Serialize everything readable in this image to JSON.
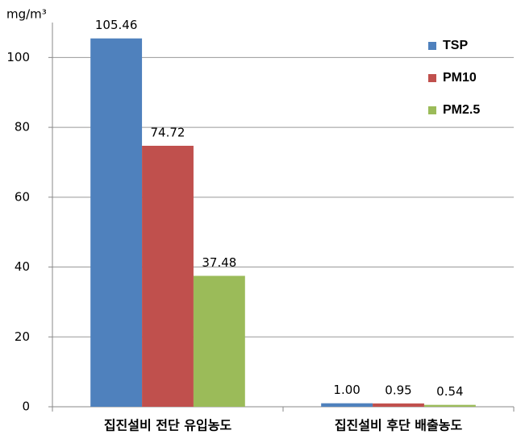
{
  "chart_data": {
    "type": "bar",
    "y_label": "mg/m³",
    "categories": [
      "집진설비 전단 유입농도",
      "집진설비 후단 배출농도"
    ],
    "series": [
      {
        "name": "TSP",
        "color": "#4f81bd",
        "values": [
          105.46,
          1.0
        ],
        "value_labels": [
          "105.46",
          "1.00"
        ]
      },
      {
        "name": "PM10",
        "color": "#c0504d",
        "values": [
          74.72,
          0.95
        ]
      },
      {
        "name": "PM2.5",
        "color": "#9bbb59",
        "values": [
          37.48,
          0.54
        ]
      }
    ],
    "ylim": [
      0,
      110
    ],
    "yticks": [
      0,
      20,
      40,
      60,
      80,
      100
    ],
    "grid": true,
    "legend": "top-right"
  }
}
